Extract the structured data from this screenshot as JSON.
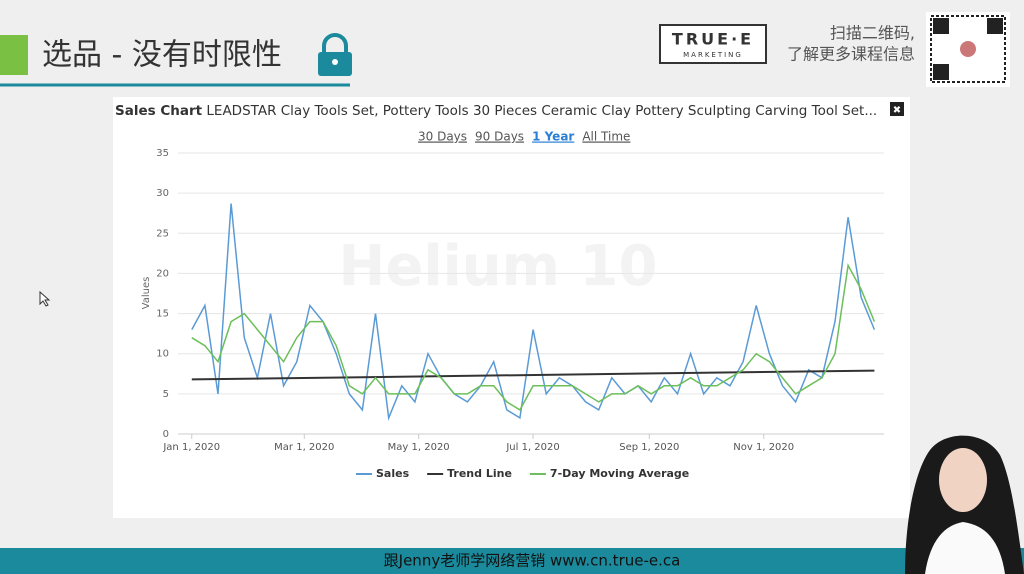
{
  "header": {
    "title": "选品 - 没有时限性",
    "logo_main": "TRUE·E",
    "logo_sub": "MARKETING",
    "qr_text_1": "扫描二维码,",
    "qr_text_2": "了解更多课程信息"
  },
  "footer": {
    "text": "跟Jenny老师学网络营销  www.cn.true-e.ca"
  },
  "chart_panel": {
    "close": "✖",
    "ranges": [
      "30 Days",
      "90 Days",
      "1 Year",
      "All Time"
    ],
    "active_range": "1 Year",
    "watermark": "Helium 10"
  },
  "chart_data": {
    "type": "line",
    "title_bold": "Sales Chart",
    "title": "LEADSTAR Clay Tools Set, Pottery Tools 30 Pieces Ceramic Clay Pottery Sculpting Carving Tool Set...",
    "y_label": "Values",
    "xlim": [
      "2019-12-30",
      "2021-01-02"
    ],
    "xticks": [
      {
        "value": "2020-01-01",
        "label": "Jan 1, 2020"
      },
      {
        "value": "2020-03-01",
        "label": "Mar 1, 2020"
      },
      {
        "value": "2020-05-01",
        "label": "May 1, 2020"
      },
      {
        "value": "2020-07-01",
        "label": "Jul 1, 2020"
      },
      {
        "value": "2020-09-01",
        "label": "Sep 1, 2020"
      },
      {
        "value": "2020-11-01",
        "label": "Nov 1, 2020"
      }
    ],
    "ylim": [
      0,
      35
    ],
    "yticks": [
      0,
      5,
      10,
      15,
      20,
      25,
      30,
      35
    ],
    "grid": true,
    "x": [
      "2020-01-01",
      "2020-01-08",
      "2020-01-15",
      "2020-01-22",
      "2020-01-29",
      "2020-02-05",
      "2020-02-12",
      "2020-02-19",
      "2020-02-26",
      "2020-03-04",
      "2020-03-11",
      "2020-03-18",
      "2020-03-25",
      "2020-04-01",
      "2020-04-08",
      "2020-04-15",
      "2020-04-22",
      "2020-04-29",
      "2020-05-06",
      "2020-05-13",
      "2020-05-20",
      "2020-05-27",
      "2020-06-03",
      "2020-06-10",
      "2020-06-17",
      "2020-06-24",
      "2020-07-01",
      "2020-07-08",
      "2020-07-15",
      "2020-07-22",
      "2020-07-29",
      "2020-08-05",
      "2020-08-12",
      "2020-08-19",
      "2020-08-26",
      "2020-09-02",
      "2020-09-09",
      "2020-09-16",
      "2020-09-23",
      "2020-09-30",
      "2020-10-07",
      "2020-10-14",
      "2020-10-21",
      "2020-10-28",
      "2020-11-04",
      "2020-11-11",
      "2020-11-18",
      "2020-11-25",
      "2020-12-02",
      "2020-12-09",
      "2020-12-16",
      "2020-12-23",
      "2020-12-30"
    ],
    "series": [
      {
        "name": "Sales",
        "color": "#5b9bd5",
        "values": [
          13,
          16,
          5,
          28.7,
          12,
          7,
          15,
          6,
          9,
          16,
          14,
          10,
          5,
          3,
          15,
          2,
          6,
          4,
          10,
          7,
          5,
          4,
          6,
          9,
          3,
          2,
          13,
          5,
          7,
          6,
          4,
          3,
          7,
          5,
          6,
          4,
          7,
          5,
          10,
          5,
          7,
          6,
          9,
          16,
          10,
          6,
          4,
          8,
          7,
          14,
          27,
          17,
          13
        ]
      },
      {
        "name": "Trend Line",
        "color": "#333333",
        "x": [
          "2020-01-01",
          "2020-12-30"
        ],
        "values": [
          6.8,
          7.9
        ]
      },
      {
        "name": "7-Day Moving Average",
        "color": "#6cbf5a",
        "values": [
          12,
          11,
          9,
          14,
          15,
          13,
          11,
          9,
          12,
          14,
          14,
          11,
          6,
          5,
          7,
          5,
          5,
          5,
          8,
          7,
          5,
          5,
          6,
          6,
          4,
          3,
          6,
          6,
          6,
          6,
          5,
          4,
          5,
          5,
          6,
          5,
          6,
          6,
          7,
          6,
          6,
          7,
          8,
          10,
          9,
          7,
          5,
          6,
          7,
          10,
          21,
          18,
          14
        ]
      }
    ]
  }
}
